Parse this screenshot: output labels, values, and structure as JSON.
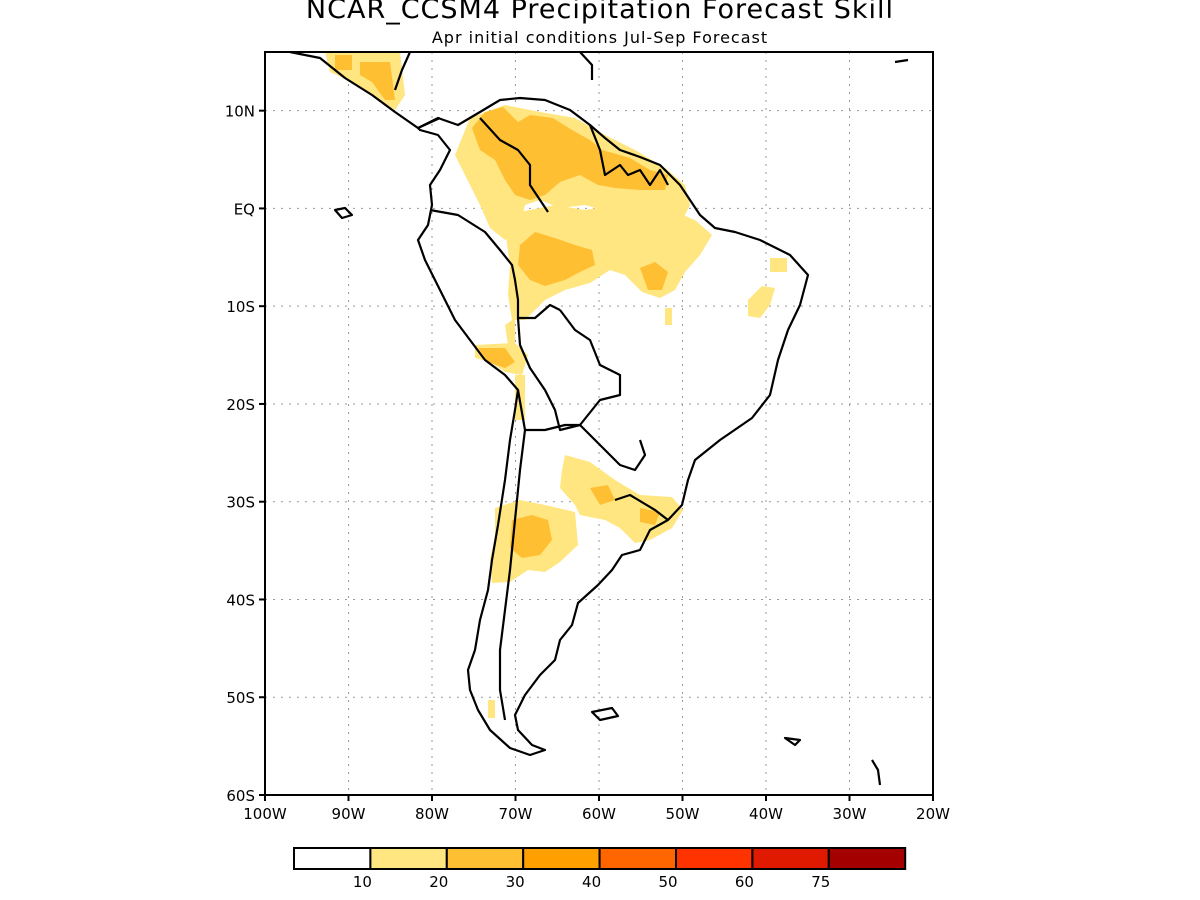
{
  "title": "NCAR_CCSM4 Precipitation Forecast Skill",
  "subtitle": "Apr initial conditions  Jul-Sep Forecast",
  "map": {
    "lon_range": [
      -100,
      -20
    ],
    "lat_range": [
      -60,
      16
    ],
    "lat_ticks": [
      {
        "value": 10,
        "label": "10N"
      },
      {
        "value": 0,
        "label": "EQ"
      },
      {
        "value": -10,
        "label": "10S"
      },
      {
        "value": -20,
        "label": "20S"
      },
      {
        "value": -30,
        "label": "30S"
      },
      {
        "value": -40,
        "label": "40S"
      },
      {
        "value": -50,
        "label": "50S"
      },
      {
        "value": -60,
        "label": "60S"
      }
    ],
    "lon_ticks": [
      {
        "value": -100,
        "label": "100W"
      },
      {
        "value": -90,
        "label": "90W"
      },
      {
        "value": -80,
        "label": "80W"
      },
      {
        "value": -70,
        "label": "70W"
      },
      {
        "value": -60,
        "label": "60W"
      },
      {
        "value": -50,
        "label": "50W"
      },
      {
        "value": -40,
        "label": "40W"
      },
      {
        "value": -30,
        "label": "30W"
      },
      {
        "value": -20,
        "label": "20W"
      }
    ],
    "grid": "dotted"
  },
  "legend": {
    "colors": [
      "#ffffff",
      "#ffe680",
      "#ffbf33",
      "#ff9f00",
      "#ff6600",
      "#ff3300",
      "#e01a00",
      "#a50000"
    ],
    "labels": [
      "10",
      "20",
      "30",
      "40",
      "50",
      "60",
      "75"
    ]
  }
}
